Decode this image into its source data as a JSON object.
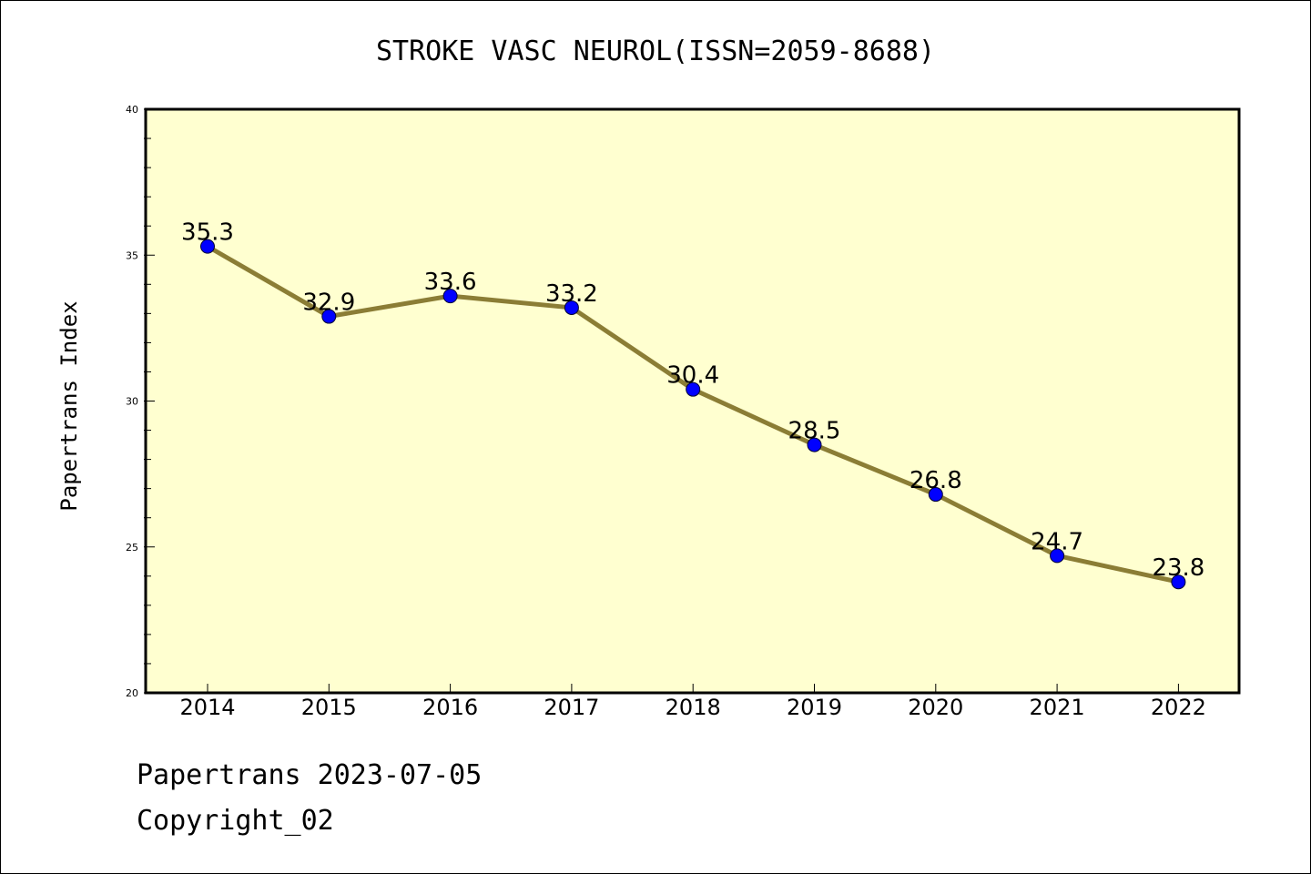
{
  "chart_data": {
    "type": "line",
    "title": "STROKE VASC NEUROL(ISSN=2059-8688)",
    "xlabel": "",
    "ylabel": "Papertrans Index",
    "categories": [
      "2014",
      "2015",
      "2016",
      "2017",
      "2018",
      "2019",
      "2020",
      "2021",
      "2022"
    ],
    "series": [
      {
        "values": [
          35.3,
          32.9,
          33.6,
          33.2,
          30.4,
          28.5,
          26.8,
          24.7,
          23.8
        ],
        "labels": [
          "35.3",
          "32.9",
          "33.6",
          "33.2",
          "30.4",
          "28.5",
          "26.8",
          "24.7",
          "23.8"
        ]
      }
    ],
    "ylim": [
      20,
      40
    ],
    "yticks": [
      "20",
      "25",
      "30",
      "35",
      "40"
    ],
    "grid": false,
    "colors": {
      "plot_background": "#ffffd0",
      "line": "#8b7d35",
      "marker": "#0000ff"
    }
  },
  "footer": {
    "line1": "Papertrans 2023-07-05",
    "line2": "Copyright_02"
  }
}
